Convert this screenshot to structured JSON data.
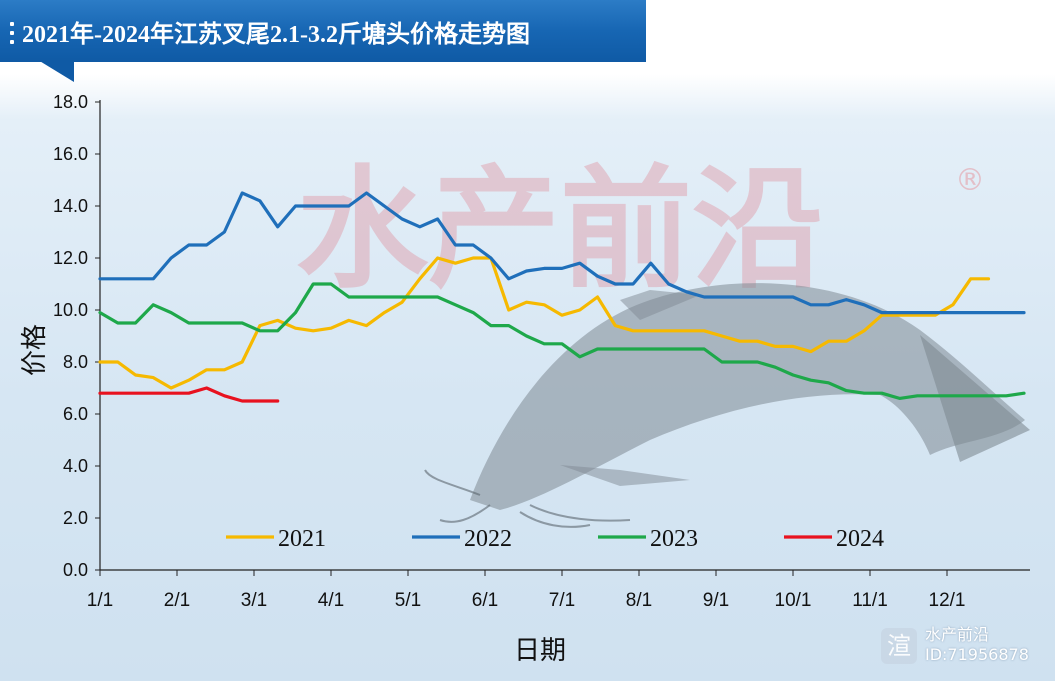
{
  "header": {
    "title": "2021年-2024年江苏叉尾2.1-3.2斤塘头价格走势图"
  },
  "watermark": {
    "brand": "水产前沿",
    "id_text": "ID:71956878",
    "center_text": "水产前沿",
    "registered": "®",
    "logo_glyph": "渲"
  },
  "chart_data": {
    "type": "line",
    "title": "2021年-2024年江苏叉尾2.1-3.2斤塘头价格走势图",
    "xlabel": "日期",
    "ylabel": "价格",
    "ylim": [
      0,
      18
    ],
    "yticks": [
      "0.0",
      "2.0",
      "4.0",
      "6.0",
      "8.0",
      "10.0",
      "12.0",
      "14.0",
      "16.0",
      "18.0"
    ],
    "x_tick_labels": [
      "1/1",
      "2/1",
      "3/1",
      "4/1",
      "5/1",
      "6/1",
      "7/1",
      "8/1",
      "9/1",
      "10/1",
      "11/1",
      "12/1"
    ],
    "x_unit": "week index (0 = 1/1)",
    "legend_position": "bottom",
    "grid": false,
    "series": [
      {
        "name": "2021",
        "color": "#f6b900",
        "x": [
          0,
          1,
          2,
          3,
          4,
          5,
          6,
          7,
          8,
          9,
          10,
          11,
          12,
          13,
          14,
          15,
          16,
          17,
          18,
          19,
          20,
          21,
          22,
          23,
          24,
          25,
          26,
          27,
          28,
          29,
          30,
          31,
          32,
          33,
          34,
          35,
          36,
          37,
          38,
          39,
          40,
          41,
          42,
          43,
          44,
          45,
          46,
          47,
          48,
          49,
          50
        ],
        "values": [
          8.0,
          8.0,
          7.5,
          7.4,
          7.0,
          7.3,
          7.7,
          7.7,
          8.0,
          9.4,
          9.6,
          9.3,
          9.2,
          9.3,
          9.6,
          9.4,
          9.9,
          10.3,
          11.2,
          12.0,
          11.8,
          12.0,
          12.0,
          10.0,
          10.3,
          10.2,
          9.8,
          10.0,
          10.5,
          9.4,
          9.2,
          9.2,
          9.2,
          9.2,
          9.2,
          9.0,
          8.8,
          8.8,
          8.6,
          8.6,
          8.4,
          8.8,
          8.8,
          9.2,
          9.8,
          9.8,
          9.8,
          9.8,
          10.2,
          11.2,
          11.2
        ]
      },
      {
        "name": "2022",
        "color": "#1f6fba",
        "x": [
          0,
          1,
          2,
          3,
          4,
          5,
          6,
          7,
          8,
          9,
          10,
          11,
          12,
          13,
          14,
          15,
          16,
          17,
          18,
          19,
          20,
          21,
          22,
          23,
          24,
          25,
          26,
          27,
          28,
          29,
          30,
          31,
          32,
          33,
          34,
          35,
          36,
          37,
          38,
          39,
          40,
          41,
          42,
          43,
          44,
          45,
          46,
          47,
          48,
          49,
          50,
          51,
          52
        ],
        "values": [
          11.2,
          11.2,
          11.2,
          11.2,
          12.0,
          12.5,
          12.5,
          13.0,
          14.5,
          14.2,
          13.2,
          14.0,
          14.0,
          14.0,
          14.0,
          14.5,
          14.0,
          13.5,
          13.2,
          13.5,
          12.5,
          12.5,
          12.0,
          11.2,
          11.5,
          11.6,
          11.6,
          11.8,
          11.3,
          11.0,
          11.0,
          11.8,
          11.0,
          10.7,
          10.5,
          10.5,
          10.5,
          10.5,
          10.5,
          10.5,
          10.2,
          10.2,
          10.4,
          10.2,
          9.9,
          9.9,
          9.9,
          9.9,
          9.9,
          9.9,
          9.9,
          9.9,
          9.9
        ]
      },
      {
        "name": "2023",
        "color": "#1ea84a",
        "x": [
          0,
          1,
          2,
          3,
          4,
          5,
          6,
          7,
          8,
          9,
          10,
          11,
          12,
          13,
          14,
          15,
          16,
          17,
          18,
          19,
          20,
          21,
          22,
          23,
          24,
          25,
          26,
          27,
          28,
          29,
          30,
          31,
          32,
          33,
          34,
          35,
          36,
          37,
          38,
          39,
          40,
          41,
          42,
          43,
          44,
          45,
          46,
          47,
          48,
          49,
          50,
          51,
          52
        ],
        "values": [
          9.9,
          9.5,
          9.5,
          10.2,
          9.9,
          9.5,
          9.5,
          9.5,
          9.5,
          9.2,
          9.2,
          9.9,
          11.0,
          11.0,
          10.5,
          10.5,
          10.5,
          10.5,
          10.5,
          10.5,
          10.2,
          9.9,
          9.4,
          9.4,
          9.0,
          8.7,
          8.7,
          8.2,
          8.5,
          8.5,
          8.5,
          8.5,
          8.5,
          8.5,
          8.5,
          8.0,
          8.0,
          8.0,
          7.8,
          7.5,
          7.3,
          7.2,
          6.9,
          6.8,
          6.8,
          6.6,
          6.7,
          6.7,
          6.7,
          6.7,
          6.7,
          6.7,
          6.8
        ]
      },
      {
        "name": "2024",
        "color": "#e8121f",
        "x": [
          0,
          1,
          2,
          3,
          4,
          5,
          6,
          7,
          8,
          9,
          10
        ],
        "values": [
          6.8,
          6.8,
          6.8,
          6.8,
          6.8,
          6.8,
          7.0,
          6.7,
          6.5,
          6.5,
          6.5
        ]
      }
    ]
  }
}
